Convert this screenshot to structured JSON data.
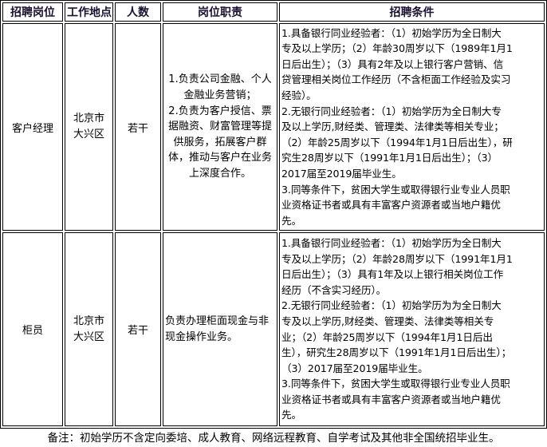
{
  "headers": [
    "招聘岗位",
    "工作地点",
    "人数",
    "岗位职责",
    "招聘条件"
  ],
  "rows": [
    {
      "position": "客户经理",
      "location": [
        "北京市",
        "大兴区"
      ],
      "count": "若干",
      "duties": [
        "1.负责公司金融、个人",
        "金融业务营销；",
        "2.负责为客户授信、票",
        "据融资、财富管理等提",
        "供服务，拓展客户群",
        "体，推动与客户在业务",
        "上深度合作。"
      ],
      "requirements": [
        "1.具备银行同业经验者：（1）初始学历为全日制大",
        "专及以上学历；（2）年龄30周岁以下（1989年1月1",
        "日后出生）；（3）具有2年及以上银行客户营销、信",
        "贷管理相关岗位工作经历（不含柜面工作经验及实习",
        "经验）。",
        "2.无银行同业经验者：（1）初始学历为全日制大专",
        "及以上学历,财经类、管理类、法律类等相关专业；",
        "（2）年龄25周岁以下（1994年1月1日后出生），研",
        "究生28周岁以下（1991年1月1日后出生）；（3）",
        "2017届至2019届毕业生。",
        "3.同等条件下，贫困大学生或取得银行业专业人员职",
        "业资格证书者或具有丰富客户资源者或当地户籍优",
        "先。"
      ]
    },
    {
      "position": "柜员",
      "location": [
        "北京市",
        "大兴区"
      ],
      "count": "若干",
      "duties": [
        "负责办理柜面现金与非",
        "现金操作业务。"
      ],
      "requirements": [
        "1.具备银行同业经验者：（1）初始学历为全日制大",
        "专及以上学历；（2）年龄28周岁以下（1991年1月1",
        "日后出生）；（3）具有1年及以上银行相关岗位工作",
        "经历（不含实习经历）。",
        "2.无银行同业经验者：（1）初始学历为为全日制大",
        "专及以上学历,财经类、管理类、法律类等相关专",
        "业；（2）年龄25周岁以下（1994年1月1日后出",
        "生），研究生28周岁以下（1991年1月1日后出生）；",
        "（3）2017届至2019届毕业生。",
        "3.同等条件下，贫困大学生或取得银行业专业人员职",
        "业资格证书者或具有丰富客户资源者或当地户籍优",
        "先。"
      ]
    }
  ],
  "note": "备注：初始学历不含定向委培、成人教育、网络远程教育、自学考试及其他非全国统招毕业生。"
}
